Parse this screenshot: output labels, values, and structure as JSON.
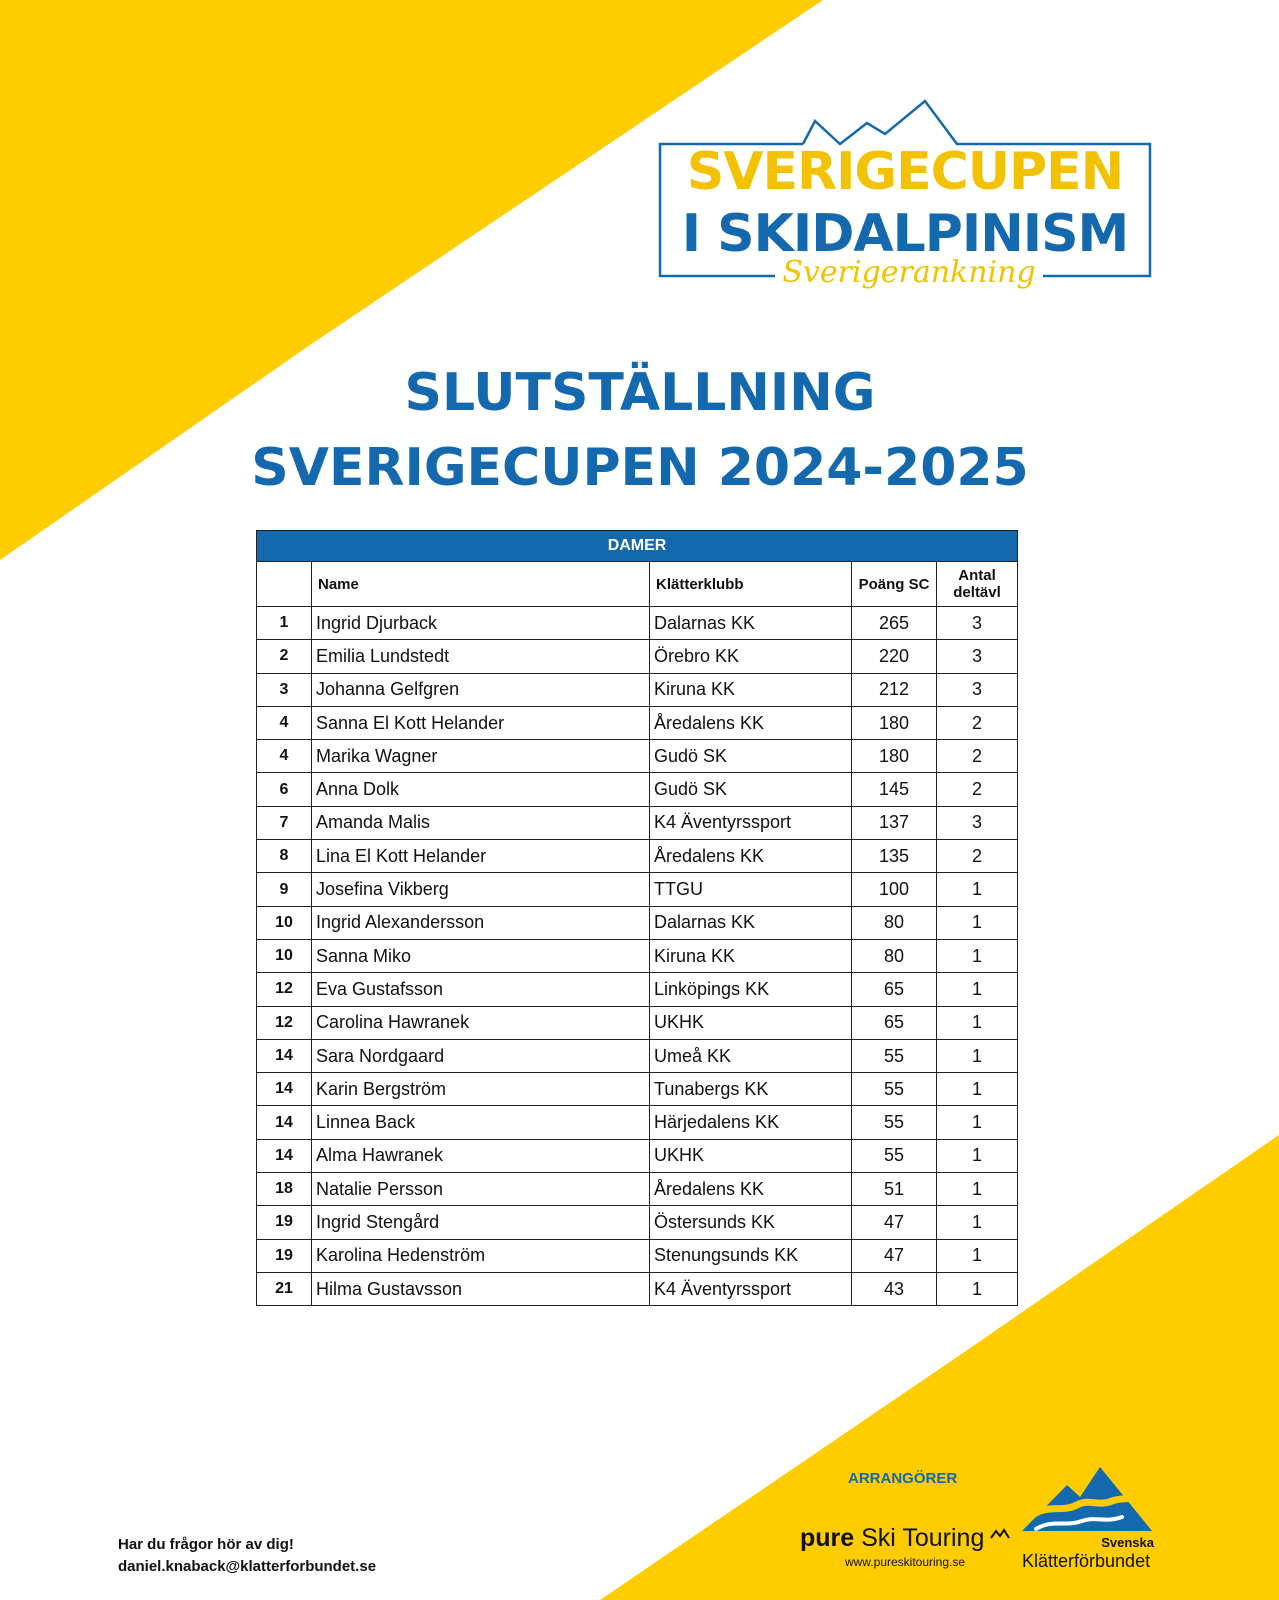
{
  "colors": {
    "accent_yellow": "#ffcc00",
    "brand_blue": "#1468ad"
  },
  "logo": {
    "line1": "SVERIGECUPEN",
    "line2": "I SKIDALPINISM",
    "tagline": "Sverigerankning"
  },
  "title": {
    "line1": "SLUTSTÄLLNING",
    "line2": "SVERIGECUPEN 2024-2025"
  },
  "table": {
    "section": "DAMER",
    "headers": {
      "rank": "",
      "name": "Name",
      "club": "Klätterklubb",
      "points": "Poäng SC",
      "count_line1": "Antal",
      "count_line2": "deltävl"
    },
    "rows": [
      {
        "rank": "1",
        "name": "Ingrid Djurback",
        "club": "Dalarnas KK",
        "points": "265",
        "count": "3"
      },
      {
        "rank": "2",
        "name": "Emilia Lundstedt",
        "club": "Örebro KK",
        "points": "220",
        "count": "3"
      },
      {
        "rank": "3",
        "name": "Johanna Gelfgren",
        "club": "Kiruna KK",
        "points": "212",
        "count": "3"
      },
      {
        "rank": "4",
        "name": "Sanna El Kott Helander",
        "club": "Åredalens KK",
        "points": "180",
        "count": "2"
      },
      {
        "rank": "4",
        "name": "Marika Wagner",
        "club": "Gudö SK",
        "points": "180",
        "count": "2"
      },
      {
        "rank": "6",
        "name": "Anna Dolk",
        "club": "Gudö SK",
        "points": "145",
        "count": "2"
      },
      {
        "rank": "7",
        "name": "Amanda Malis",
        "club": "K4 Äventyrssport",
        "points": "137",
        "count": "3"
      },
      {
        "rank": "8",
        "name": "Lina El Kott Helander",
        "club": "Åredalens KK",
        "points": "135",
        "count": "2"
      },
      {
        "rank": "9",
        "name": "Josefina Vikberg",
        "club": "TTGU",
        "points": "100",
        "count": "1"
      },
      {
        "rank": "10",
        "name": "Ingrid Alexandersson",
        "club": "Dalarnas KK",
        "points": "80",
        "count": "1"
      },
      {
        "rank": "10",
        "name": "Sanna Miko",
        "club": "Kiruna KK",
        "points": "80",
        "count": "1"
      },
      {
        "rank": "12",
        "name": "Eva Gustafsson",
        "club": "Linköpings KK",
        "points": "65",
        "count": "1"
      },
      {
        "rank": "12",
        "name": "Carolina Hawranek",
        "club": "UKHK",
        "points": "65",
        "count": "1"
      },
      {
        "rank": "14",
        "name": "Sara Nordgaard",
        "club": "Umeå KK",
        "points": "55",
        "count": "1"
      },
      {
        "rank": "14",
        "name": "Karin Bergström",
        "club": "Tunabergs KK",
        "points": "55",
        "count": "1"
      },
      {
        "rank": "14",
        "name": "Linnea Back",
        "club": "Härjedalens KK",
        "points": "55",
        "count": "1"
      },
      {
        "rank": "14",
        "name": "Alma Hawranek",
        "club": "UKHK",
        "points": "55",
        "count": "1"
      },
      {
        "rank": "18",
        "name": "Natalie Persson",
        "club": "Åredalens KK",
        "points": "51",
        "count": "1"
      },
      {
        "rank": "19",
        "name": "Ingrid Stengård",
        "club": "Östersunds KK",
        "points": "47",
        "count": "1"
      },
      {
        "rank": "19",
        "name": "Karolina Hedenström",
        "club": "Stenungsunds KK",
        "points": "47",
        "count": "1"
      },
      {
        "rank": "21",
        "name": "Hilma Gustavsson",
        "club": "K4 Äventyrssport",
        "points": "43",
        "count": "1"
      }
    ]
  },
  "footer": {
    "contact_line1": "Har du frågor hör av dig!",
    "contact_email": "daniel.knaback@klatterforbundet.se",
    "organizers_label": "ARRANGÖRER",
    "pure_bold": "pure",
    "pure_rest": " Ski Touring",
    "pure_url": "www.pureskitouring.se",
    "skf_line1": "Svenska",
    "skf_line2": "Klätterförbundet",
    "pure_mark_icon": "mountain-peaks-icon",
    "skf_logo_icon": "mountain-wave-icon"
  }
}
